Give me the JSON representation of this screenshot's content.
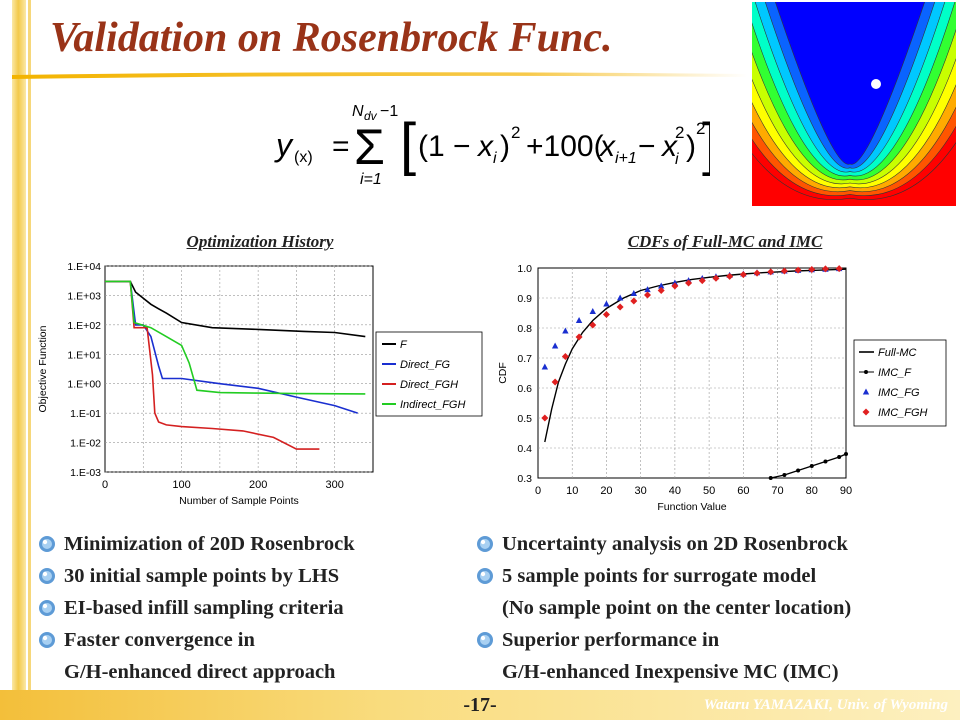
{
  "slide": {
    "title": "Validation on Rosenbrock Func.",
    "page_number": "-17-",
    "author": "Wataru YAMAZAKI, Univ. of Wyoming"
  },
  "formula": {
    "lhs": "y",
    "lhs_sub": "(x)",
    "sum_upper": "N",
    "sum_upper_sub": "dv",
    "sum_upper_tail": "−1",
    "sum_lower": "i=1",
    "term": "[(1 − x_i)^2 + 100(x_{i+1} − x_i^2)^2]"
  },
  "colors": {
    "title": "#993318",
    "accent_bar": "#f3c94a",
    "F": "#000000",
    "Direct_FG": "#1a2fd0",
    "Direct_FGH": "#d42020",
    "Indirect_FGH": "#22cc22"
  },
  "chart_data": [
    {
      "type": "line",
      "title": "Optimization History",
      "xlabel": "Number of Sample Points",
      "ylabel": "Objective Function",
      "xlim": [
        0,
        350
      ],
      "ylim": [
        0.001,
        10000
      ],
      "yscale": "log",
      "xticks": [
        "0",
        "100",
        "200",
        "300"
      ],
      "yticks": [
        "1.E-03",
        "1.E-02",
        "1.E-01",
        "1.E+00",
        "1.E+01",
        "1.E+02",
        "1.E+03",
        "1.E+04"
      ],
      "grid": true,
      "legend_position": "right",
      "series": [
        {
          "name": "F",
          "color": "#000000",
          "x": [
            0,
            33,
            40,
            50,
            60,
            70,
            80,
            100,
            140,
            200,
            260,
            300,
            340
          ],
          "y": [
            3000,
            3000,
            1300,
            800,
            500,
            350,
            250,
            120,
            80,
            70,
            60,
            55,
            40
          ]
        },
        {
          "name": "Direct_FG",
          "color": "#1a2fd0",
          "x": [
            0,
            33,
            40,
            50,
            60,
            70,
            75,
            100,
            150,
            200,
            250,
            300,
            330
          ],
          "y": [
            3000,
            3000,
            100,
            100,
            40,
            4,
            1.5,
            1.5,
            1.0,
            0.7,
            0.35,
            0.18,
            0.1
          ]
        },
        {
          "name": "Direct_FGH",
          "color": "#d42020",
          "x": [
            0,
            33,
            38,
            55,
            62,
            65,
            70,
            80,
            100,
            140,
            180,
            220,
            250,
            280
          ],
          "y": [
            3000,
            3000,
            80,
            80,
            2.0,
            0.1,
            0.05,
            0.04,
            0.035,
            0.03,
            0.025,
            0.015,
            0.006,
            0.006
          ]
        },
        {
          "name": "Indirect_FGH",
          "color": "#22cc22",
          "x": [
            0,
            33,
            38,
            60,
            80,
            100,
            110,
            120,
            150,
            200,
            250,
            340
          ],
          "y": [
            3000,
            3000,
            120,
            80,
            40,
            20,
            5,
            0.6,
            0.5,
            0.48,
            0.46,
            0.45
          ]
        }
      ]
    },
    {
      "type": "line",
      "title": "CDFs of Full-MC and IMC",
      "xlabel": "Function Value",
      "ylabel": "CDF",
      "xlim": [
        0,
        90
      ],
      "ylim": [
        0.3,
        1.0
      ],
      "xticks": [
        "0",
        "10",
        "20",
        "30",
        "40",
        "50",
        "60",
        "70",
        "80",
        "90"
      ],
      "yticks": [
        "0.3",
        "0.4",
        "0.5",
        "0.6",
        "0.7",
        "0.8",
        "0.9",
        "1.0"
      ],
      "grid": true,
      "legend_position": "right",
      "series": [
        {
          "name": "Full-MC",
          "color": "#000000",
          "marker": "none",
          "x": [
            2,
            4,
            6,
            8,
            10,
            13,
            16,
            20,
            25,
            30,
            35,
            40,
            45,
            50,
            55,
            60,
            65,
            70,
            75,
            80,
            85,
            90
          ],
          "y": [
            0.42,
            0.53,
            0.62,
            0.68,
            0.73,
            0.785,
            0.825,
            0.865,
            0.9,
            0.925,
            0.94,
            0.952,
            0.962,
            0.969,
            0.975,
            0.98,
            0.984,
            0.987,
            0.99,
            0.992,
            0.994,
            0.996
          ]
        },
        {
          "name": "IMC_F",
          "color": "#000000",
          "marker": "circle",
          "x": [
            68,
            72,
            76,
            80,
            84,
            88,
            90
          ],
          "y": [
            0.3,
            0.31,
            0.325,
            0.34,
            0.355,
            0.37,
            0.38
          ]
        },
        {
          "name": "IMC_FG",
          "color": "#1a2fd0",
          "marker": "triangle",
          "x": [
            2,
            5,
            8,
            12,
            16,
            20,
            24,
            28,
            32,
            36,
            40,
            44,
            48,
            52,
            56,
            60,
            64,
            68,
            72,
            76,
            80,
            84,
            88
          ],
          "y": [
            0.67,
            0.74,
            0.79,
            0.825,
            0.855,
            0.88,
            0.9,
            0.915,
            0.928,
            0.94,
            0.95,
            0.958,
            0.965,
            0.971,
            0.976,
            0.98,
            0.984,
            0.987,
            0.99,
            0.992,
            0.994,
            0.996,
            0.998
          ]
        },
        {
          "name": "IMC_FGH",
          "color": "#e02020",
          "marker": "diamond",
          "x": [
            2,
            5,
            8,
            12,
            16,
            20,
            24,
            28,
            32,
            36,
            40,
            44,
            48,
            52,
            56,
            60,
            64,
            68,
            72,
            76,
            80,
            84,
            88
          ],
          "y": [
            0.5,
            0.62,
            0.705,
            0.77,
            0.81,
            0.845,
            0.87,
            0.89,
            0.91,
            0.925,
            0.94,
            0.95,
            0.958,
            0.966,
            0.972,
            0.978,
            0.983,
            0.987,
            0.99,
            0.993,
            0.995,
            0.997,
            0.998
          ]
        }
      ]
    },
    {
      "type": "heatmap",
      "description_colors": [
        "#0000ff",
        "#0a64ff",
        "#00c8ff",
        "#00ffc8",
        "#32ff32",
        "#c8ff00",
        "#ffff00",
        "#ffaa00",
        "#ff5500",
        "#ff0000"
      ],
      "marker": "white dot"
    }
  ],
  "bullets_left": [
    {
      "text": "Minimization of 20D Rosenbrock",
      "icon": "bullet-icon"
    },
    {
      "text": "30 initial sample points by LHS",
      "icon": "bullet-icon"
    },
    {
      "text": "EI-based infill sampling criteria",
      "icon": "bullet-icon"
    },
    {
      "text": "Faster convergence in",
      "icon": "bullet-icon"
    },
    {
      "text": "G/H-enhanced direct approach",
      "icon": ""
    }
  ],
  "bullets_right": [
    {
      "text": "Uncertainty analysis on 2D Rosenbrock",
      "icon": "bullet-icon"
    },
    {
      "text": "5 sample points for surrogate model",
      "icon": "bullet-icon"
    },
    {
      "text": "(No sample point on the center location)",
      "icon": ""
    },
    {
      "text": "Superior performance in",
      "icon": "bullet-icon"
    },
    {
      "text": "G/H-enhanced Inexpensive MC (IMC)",
      "icon": ""
    }
  ]
}
